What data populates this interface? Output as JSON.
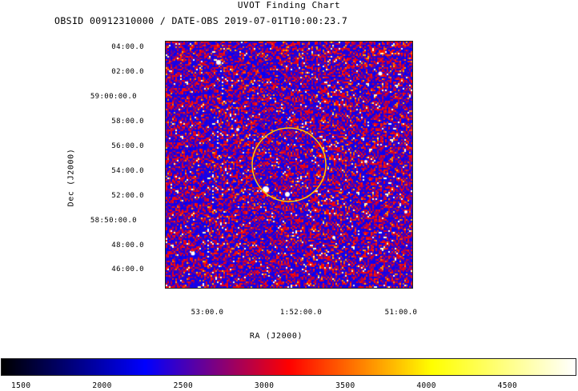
{
  "chart_data": {
    "type": "heatmap",
    "title": "UVOT Finding Chart",
    "subtitle": "OBSID 00912310000 / DATE-OBS 2019-07-01T10:00:23.7",
    "xlabel": "RA (J2000)",
    "ylabel": "Dec (J2000)",
    "x_ticks": [
      "53:00.0",
      "1:52:00.0",
      "51:00.0"
    ],
    "y_ticks": [
      "04:00.0",
      "02:00.0",
      "59:00:00.0",
      "58:00.0",
      "56:00.0",
      "54:00.0",
      "52:00.0",
      "58:50:00.0",
      "48:00.0",
      "46:00.0"
    ],
    "colorbar": {
      "ticks": [
        1500,
        2000,
        2500,
        3000,
        3500,
        4000,
        4500
      ],
      "range": [
        1380,
        4920
      ],
      "colormap": [
        "#000000",
        "#0000ff",
        "#ff0000",
        "#ffff00",
        "#ffffff"
      ]
    },
    "annotations": [
      {
        "shape": "circle",
        "color": "#ffcc00"
      }
    ],
    "bright_sources": [
      {
        "color": "#ffffff"
      }
    ]
  }
}
